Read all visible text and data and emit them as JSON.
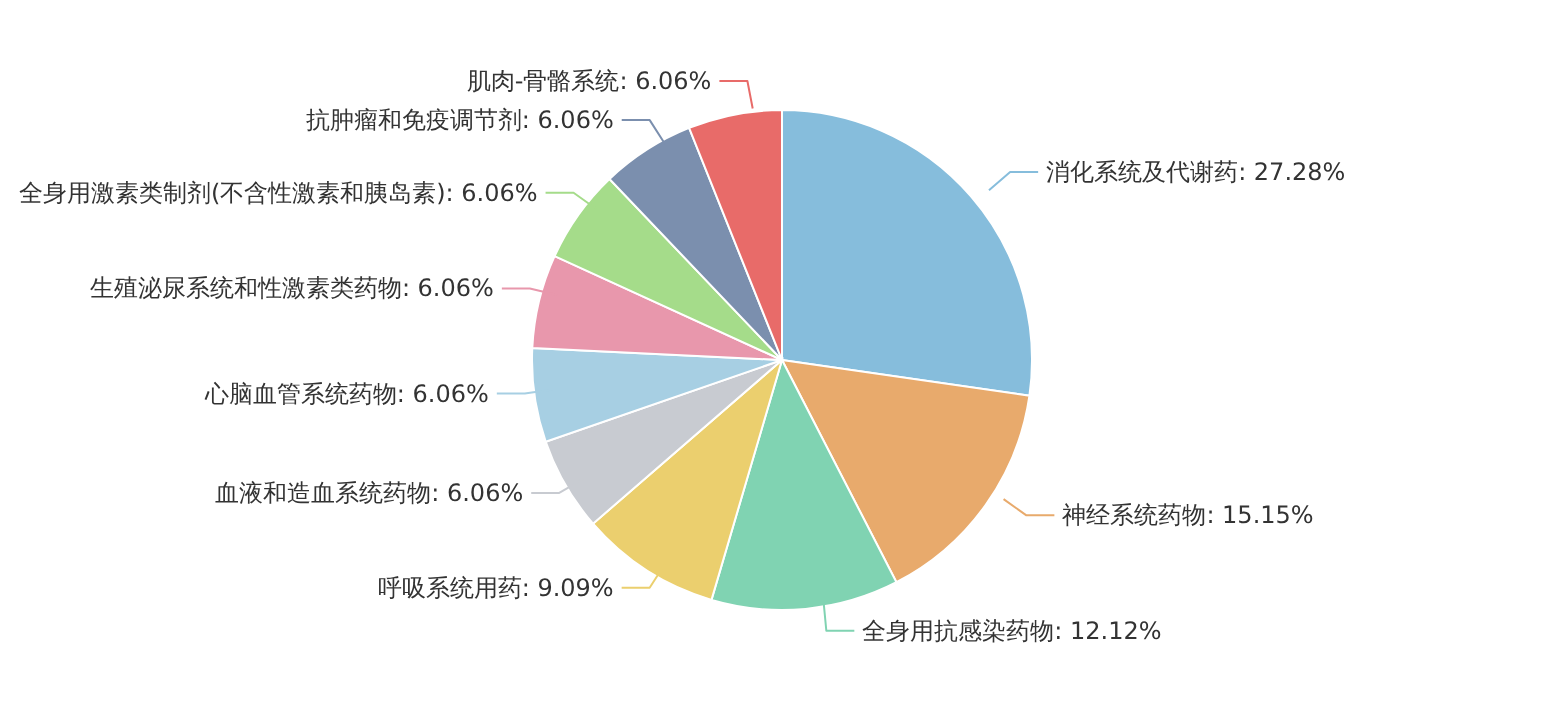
{
  "chart_data": {
    "type": "pie",
    "categories": [
      "消化系统及代谢药",
      "神经系统药物",
      "全身用抗感染药物",
      "呼吸系统用药",
      "血液和造血系统药物",
      "心脑血管系统药物",
      "生殖泌尿系统和性激素类药物",
      "全身用激素类制剂(不含性激素和胰岛素)",
      "抗肿瘤和免疫调节剂",
      "肌肉-骨骼系统"
    ],
    "values": [
      27.28,
      15.15,
      12.12,
      9.09,
      6.06,
      6.06,
      6.06,
      6.06,
      6.06,
      6.06
    ],
    "colors": [
      "#86bddc",
      "#e8aa6c",
      "#80d3b2",
      "#ebcf6e",
      "#c8cbd1",
      "#a7cfe3",
      "#e897ac",
      "#a5dc8a",
      "#7b8fae",
      "#e86b69"
    ],
    "value_labels": [
      "27.28%",
      "15.15%",
      "12.12%",
      "9.09%",
      "6.06%",
      "6.06%",
      "6.06%",
      "6.06%",
      "6.06%",
      "6.06%"
    ]
  }
}
